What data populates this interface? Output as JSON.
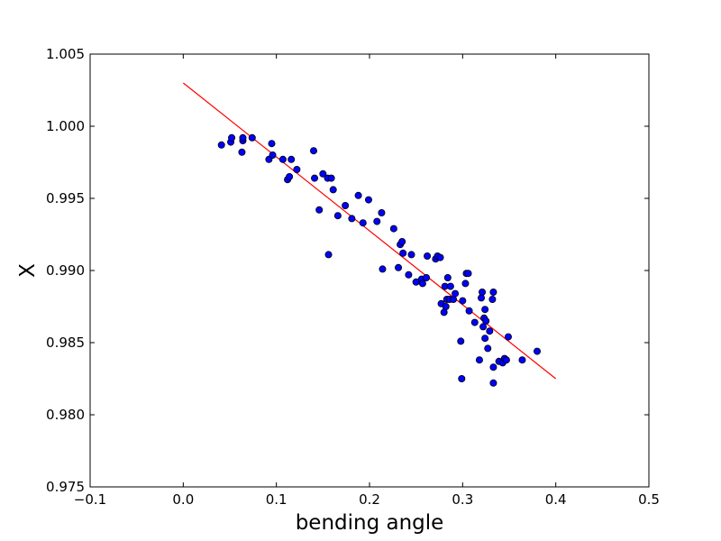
{
  "chart_data": {
    "type": "scatter",
    "xlabel": "bending angle",
    "ylabel": "X",
    "xlim": [
      -0.1,
      0.5
    ],
    "ylim": [
      0.975,
      1.005
    ],
    "xticks": [
      -0.1,
      0.0,
      0.1,
      0.2,
      0.3,
      0.4,
      0.5
    ],
    "xtick_labels": [
      "−0.1",
      "0.0",
      "0.1",
      "0.2",
      "0.3",
      "0.4",
      "0.5"
    ],
    "yticks": [
      0.975,
      0.98,
      0.985,
      0.99,
      0.995,
      1.0,
      1.005
    ],
    "ytick_labels": [
      "0.975",
      "0.980",
      "0.985",
      "0.990",
      "0.995",
      "1.000",
      "1.005"
    ],
    "grid": false,
    "series": [
      {
        "kind": "scatter",
        "color": "#0000ff",
        "points": [
          [
            0.041,
            0.9987
          ],
          [
            0.051,
            0.9989
          ],
          [
            0.052,
            0.9992
          ],
          [
            0.063,
            0.9982
          ],
          [
            0.064,
            0.999
          ],
          [
            0.064,
            0.9992
          ],
          [
            0.074,
            0.9992
          ],
          [
            0.092,
            0.9977
          ],
          [
            0.095,
            0.9988
          ],
          [
            0.096,
            0.998
          ],
          [
            0.107,
            0.9977
          ],
          [
            0.112,
            0.9963
          ],
          [
            0.114,
            0.9965
          ],
          [
            0.116,
            0.9977
          ],
          [
            0.122,
            0.997
          ],
          [
            0.14,
            0.9983
          ],
          [
            0.141,
            0.9964
          ],
          [
            0.146,
            0.9942
          ],
          [
            0.15,
            0.9967
          ],
          [
            0.155,
            0.9964
          ],
          [
            0.156,
            0.9911
          ],
          [
            0.159,
            0.9964
          ],
          [
            0.161,
            0.9956
          ],
          [
            0.166,
            0.9938
          ],
          [
            0.174,
            0.9945
          ],
          [
            0.181,
            0.9936
          ],
          [
            0.188,
            0.9952
          ],
          [
            0.193,
            0.9933
          ],
          [
            0.199,
            0.9949
          ],
          [
            0.208,
            0.9934
          ],
          [
            0.213,
            0.994
          ],
          [
            0.214,
            0.9901
          ],
          [
            0.226,
            0.9929
          ],
          [
            0.231,
            0.9902
          ],
          [
            0.233,
            0.9918
          ],
          [
            0.235,
            0.992
          ],
          [
            0.236,
            0.9912
          ],
          [
            0.242,
            0.9897
          ],
          [
            0.245,
            0.9911
          ],
          [
            0.25,
            0.9892
          ],
          [
            0.256,
            0.9894
          ],
          [
            0.257,
            0.9891
          ],
          [
            0.261,
            0.9895
          ],
          [
            0.262,
            0.991
          ],
          [
            0.271,
            0.9908
          ],
          [
            0.273,
            0.991
          ],
          [
            0.276,
            0.9909
          ],
          [
            0.277,
            0.9877
          ],
          [
            0.28,
            0.9871
          ],
          [
            0.281,
            0.9889
          ],
          [
            0.282,
            0.9875
          ],
          [
            0.283,
            0.988
          ],
          [
            0.284,
            0.9895
          ],
          [
            0.286,
            0.988
          ],
          [
            0.287,
            0.9889
          ],
          [
            0.29,
            0.988
          ],
          [
            0.292,
            0.9884
          ],
          [
            0.298,
            0.9851
          ],
          [
            0.299,
            0.9825
          ],
          [
            0.3,
            0.9879
          ],
          [
            0.303,
            0.9891
          ],
          [
            0.304,
            0.9898
          ],
          [
            0.306,
            0.9898
          ],
          [
            0.307,
            0.9872
          ],
          [
            0.313,
            0.9864
          ],
          [
            0.318,
            0.9838
          ],
          [
            0.32,
            0.9881
          ],
          [
            0.321,
            0.9885
          ],
          [
            0.322,
            0.9861
          ],
          [
            0.323,
            0.9867
          ],
          [
            0.324,
            0.9853
          ],
          [
            0.324,
            0.9873
          ],
          [
            0.325,
            0.9865
          ],
          [
            0.327,
            0.9846
          ],
          [
            0.329,
            0.9858
          ],
          [
            0.332,
            0.988
          ],
          [
            0.333,
            0.9833
          ],
          [
            0.333,
            0.9822
          ],
          [
            0.333,
            0.9885
          ],
          [
            0.339,
            0.9837
          ],
          [
            0.343,
            0.9836
          ],
          [
            0.345,
            0.9839
          ],
          [
            0.347,
            0.9838
          ],
          [
            0.349,
            0.9854
          ],
          [
            0.364,
            0.9838
          ],
          [
            0.38,
            0.9844
          ]
        ]
      },
      {
        "kind": "line",
        "color": "#ff0000",
        "points": [
          [
            0.0,
            1.003
          ],
          [
            0.4,
            0.9825
          ]
        ]
      }
    ]
  }
}
